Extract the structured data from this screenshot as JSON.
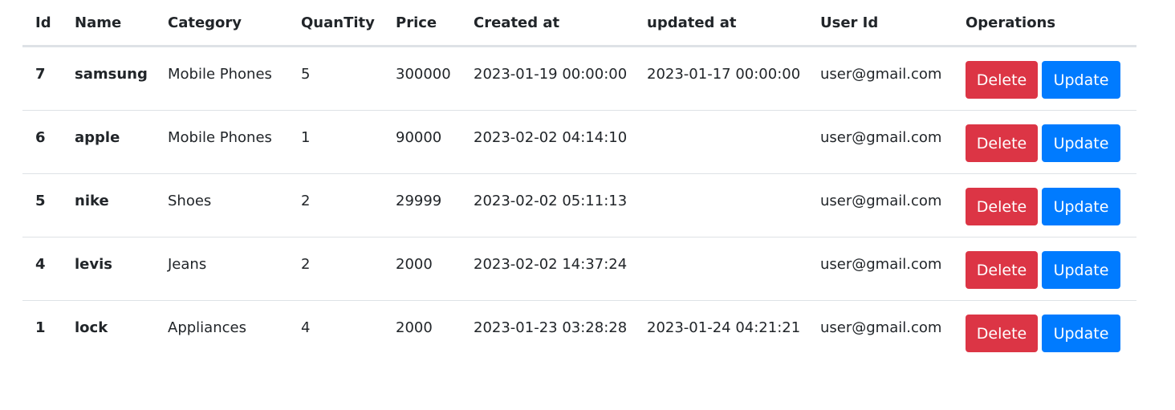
{
  "table": {
    "headers": [
      "Id",
      "Name",
      "Category",
      "QuanTity",
      "Price",
      "Created at",
      "updated at",
      "User Id",
      "Operations"
    ],
    "rows": [
      {
        "id": "7",
        "name": "samsung",
        "category": "Mobile Phones",
        "quantity": "5",
        "price": "300000",
        "created_at": "2023-01-19 00:00:00",
        "updated_at": "2023-01-17 00:00:00",
        "user_id": "user@gmail.com"
      },
      {
        "id": "6",
        "name": "apple",
        "category": "Mobile Phones",
        "quantity": "1",
        "price": "90000",
        "created_at": "2023-02-02 04:14:10",
        "updated_at": "",
        "user_id": "user@gmail.com"
      },
      {
        "id": "5",
        "name": "nike",
        "category": "Shoes",
        "quantity": "2",
        "price": "29999",
        "created_at": "2023-02-02 05:11:13",
        "updated_at": "",
        "user_id": "user@gmail.com"
      },
      {
        "id": "4",
        "name": "levis",
        "category": "Jeans",
        "quantity": "2",
        "price": "2000",
        "created_at": "2023-02-02 14:37:24",
        "updated_at": "",
        "user_id": "user@gmail.com"
      },
      {
        "id": "1",
        "name": "lock",
        "category": "Appliances",
        "quantity": "4",
        "price": "2000",
        "created_at": "2023-01-23 03:28:28",
        "updated_at": "2023-01-24 04:21:21",
        "user_id": "user@gmail.com"
      }
    ]
  },
  "actions": {
    "delete_label": "Delete",
    "update_label": "Update"
  },
  "colors": {
    "delete": "#dc3545",
    "update": "#007bff",
    "border": "#dee2e6",
    "text": "#212529"
  }
}
